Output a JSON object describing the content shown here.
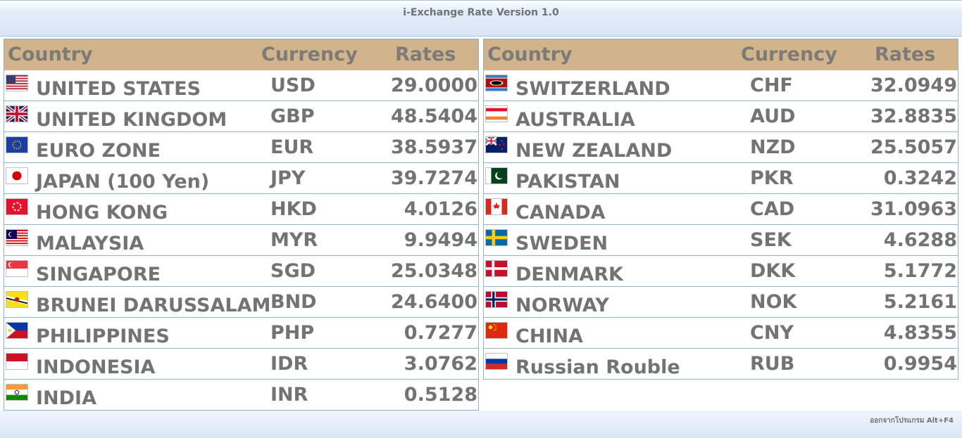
{
  "window": {
    "title": "i-Exchange Rate Version 1.0"
  },
  "header": {
    "country": "Country",
    "currency": "Currency",
    "rates": "Rates"
  },
  "left_rows": [
    {
      "country": "UNITED STATES",
      "currency": "USD",
      "rate": "29.0000",
      "flag": "us-flag-icon"
    },
    {
      "country": "UNITED KINGDOM",
      "currency": "GBP",
      "rate": "48.5404",
      "flag": "uk-flag-icon"
    },
    {
      "country": "EURO ZONE",
      "currency": "EUR",
      "rate": "38.5937",
      "flag": "eu-flag-icon"
    },
    {
      "country": "JAPAN (100 Yen)",
      "currency": "JPY",
      "rate": "39.7274",
      "flag": "japan-flag-icon"
    },
    {
      "country": "HONG KONG",
      "currency": "HKD",
      "rate": "4.0126",
      "flag": "hong-kong-flag-icon"
    },
    {
      "country": "MALAYSIA",
      "currency": "MYR",
      "rate": "9.9494",
      "flag": "malaysia-flag-icon"
    },
    {
      "country": "SINGAPORE",
      "currency": "SGD",
      "rate": "25.0348",
      "flag": "singapore-flag-icon"
    },
    {
      "country": "BRUNEI DARUSSALAM",
      "currency": "BND",
      "rate": "24.6400",
      "flag": "brunei-flag-icon"
    },
    {
      "country": "PHILIPPINES",
      "currency": "PHP",
      "rate": "0.7277",
      "flag": "philippines-flag-icon"
    },
    {
      "country": "INDONESIA",
      "currency": "IDR",
      "rate": "3.0762",
      "flag": "indonesia-flag-icon"
    },
    {
      "country": "INDIA",
      "currency": "INR",
      "rate": "0.5128",
      "flag": "india-flag-icon"
    }
  ],
  "right_rows": [
    {
      "country": "SWITZERLAND",
      "currency": "CHF",
      "rate": "32.0949",
      "flag": "switzerland-flag-icon"
    },
    {
      "country": "AUSTRALIA",
      "currency": "AUD",
      "rate": "32.8835",
      "flag": "australia-flag-icon"
    },
    {
      "country": "NEW ZEALAND",
      "currency": "NZD",
      "rate": "25.5057",
      "flag": "new-zealand-flag-icon"
    },
    {
      "country": "PAKISTAN",
      "currency": "PKR",
      "rate": "0.3242",
      "flag": "pakistan-flag-icon"
    },
    {
      "country": "CANADA",
      "currency": "CAD",
      "rate": "31.0963",
      "flag": "canada-flag-icon"
    },
    {
      "country": "SWEDEN",
      "currency": "SEK",
      "rate": "4.6288",
      "flag": "sweden-flag-icon"
    },
    {
      "country": "DENMARK",
      "currency": "DKK",
      "rate": "5.1772",
      "flag": "denmark-flag-icon"
    },
    {
      "country": "NORWAY",
      "currency": "NOK",
      "rate": "5.2161",
      "flag": "norway-flag-icon"
    },
    {
      "country": "CHINA",
      "currency": "CNY",
      "rate": "4.8355",
      "flag": "china-flag-icon"
    },
    {
      "country": "Russian Rouble",
      "currency": "RUB",
      "rate": "0.9954",
      "flag": "russia-flag-icon"
    }
  ],
  "footer": {
    "exit_hint": "ออกจากโปรแกรม Alt+F4"
  },
  "colors": {
    "header_bg": "#d2b48c",
    "text": "#737373",
    "border": "#8fb4c6"
  }
}
